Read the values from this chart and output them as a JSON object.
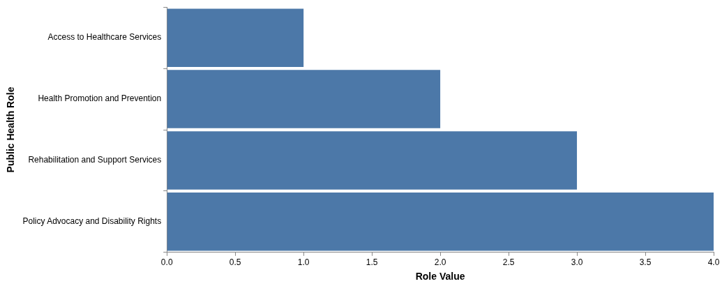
{
  "chart_data": {
    "type": "bar",
    "orientation": "horizontal",
    "xlabel": "Role Value",
    "ylabel": "Public Health Role",
    "categories": [
      "Access to Healthcare Services",
      "Health Promotion and Prevention",
      "Rehabilitation and Support Services",
      "Policy Advocacy and Disability Rights"
    ],
    "values": [
      1,
      2,
      3,
      4
    ],
    "color": "#4c78a8",
    "xlim": [
      0,
      4
    ],
    "xticks": [
      {
        "value": 0,
        "label": "0.0"
      },
      {
        "value": 0.5,
        "label": "0.5"
      },
      {
        "value": 1,
        "label": "1.0"
      },
      {
        "value": 1.5,
        "label": "1.5"
      },
      {
        "value": 2,
        "label": "2.0"
      },
      {
        "value": 2.5,
        "label": "2.5"
      },
      {
        "value": 3,
        "label": "3.0"
      },
      {
        "value": 3.5,
        "label": "3.5"
      },
      {
        "value": 4,
        "label": "4.0"
      }
    ],
    "grid": false,
    "legend": false
  }
}
